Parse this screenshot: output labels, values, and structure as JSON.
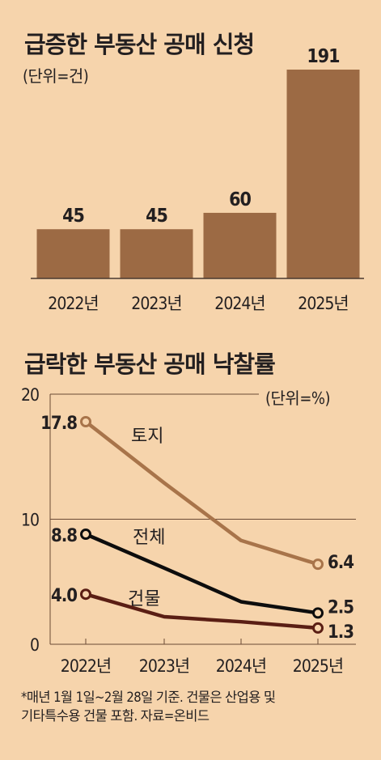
{
  "bar_chart": {
    "title": "급증한 부동산 공매 신청",
    "unit": "(단위=건)",
    "color": "#9c6a44",
    "baseline_color": "#4a3a30"
  },
  "line_chart": {
    "title": "급락한 부동산 공매 낙찰률",
    "unit": "(단위=%)",
    "grid_color": "#6b4a35",
    "point_fill": "#f6d4ac"
  },
  "footnote": {
    "line1": "*매년 1월 1일~2월 28일 기준. 건물은 산업용 및",
    "line2": "기타특수용 건물 포함. 자료=온비드"
  },
  "chart_data": [
    {
      "type": "bar",
      "title": "급증한 부동산 공매 신청",
      "subtitle": "(단위=건)",
      "categories": [
        "2022년",
        "2023년",
        "2024년",
        "2025년"
      ],
      "values": [
        45,
        45,
        60,
        191
      ],
      "data_labels": [
        "45",
        "45",
        "60",
        "191"
      ],
      "ylim": [
        0,
        200
      ],
      "grid": false,
      "legend": "none"
    },
    {
      "type": "line",
      "title": "급락한 부동산 공매 낙찰률",
      "subtitle": "(단위=%)",
      "categories": [
        "2022년",
        "2023년",
        "2024년",
        "2025년"
      ],
      "ylim": [
        0,
        20
      ],
      "yticks": [
        "0",
        "10",
        "20"
      ],
      "grid": true,
      "legend": "inline labels",
      "series": [
        {
          "name": "토지",
          "values": [
            17.8,
            12.9,
            8.3,
            6.4
          ],
          "color": "#a8744a",
          "start_label": "17.8",
          "end_label": "6.4"
        },
        {
          "name": "전체",
          "values": [
            8.8,
            6.1,
            3.4,
            2.5
          ],
          "color": "#0d0d0d",
          "start_label": "8.8",
          "end_label": "2.5"
        },
        {
          "name": "건물",
          "values": [
            4.0,
            2.2,
            1.8,
            1.3
          ],
          "color": "#5a1e14",
          "start_label": "4.0",
          "end_label": "1.3"
        }
      ]
    }
  ]
}
